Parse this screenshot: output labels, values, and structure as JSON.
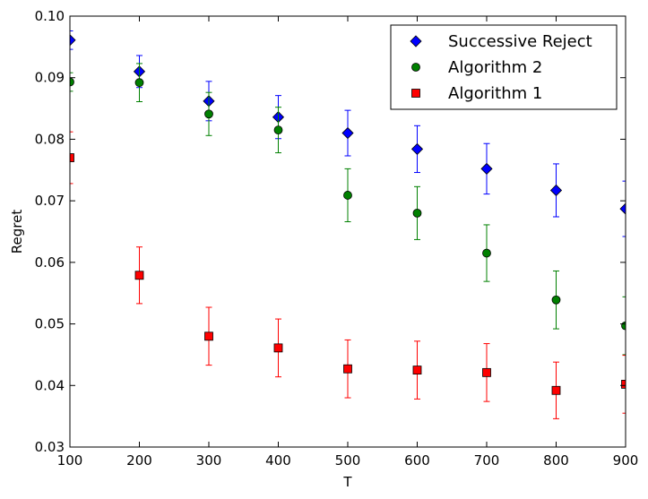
{
  "chart_data": {
    "type": "scatter",
    "title": "",
    "xlabel": "T",
    "ylabel": "Regret",
    "xlim": [
      100,
      900
    ],
    "ylim": [
      0.03,
      0.1
    ],
    "xticks": [
      100,
      200,
      300,
      400,
      500,
      600,
      700,
      800,
      900
    ],
    "xtick_labels": [
      "100",
      "200",
      "300",
      "400",
      "500",
      "600",
      "700",
      "800",
      "900"
    ],
    "yticks": [
      0.03,
      0.04,
      0.05,
      0.06,
      0.07,
      0.08,
      0.09,
      0.1
    ],
    "ytick_labels": [
      "0.03",
      "0.04",
      "0.05",
      "0.06",
      "0.07",
      "0.08",
      "0.09",
      "0.10"
    ],
    "grid": false,
    "legend_position": "top-right",
    "x": [
      100,
      200,
      300,
      400,
      500,
      600,
      700,
      800,
      900
    ],
    "series": [
      {
        "name": "Successive Reject",
        "marker": "diamond",
        "color": "#0000ff",
        "values": [
          0.0961,
          0.091,
          0.0862,
          0.0836,
          0.081,
          0.0784,
          0.0752,
          0.0717,
          0.0687
        ],
        "errors": [
          0.0015,
          0.0026,
          0.0032,
          0.0035,
          0.0037,
          0.0038,
          0.0041,
          0.0043,
          0.0045
        ]
      },
      {
        "name": "Algorithm 2",
        "marker": "circle",
        "color": "#008000",
        "values": [
          0.0893,
          0.0892,
          0.0841,
          0.0815,
          0.0709,
          0.068,
          0.0615,
          0.0539,
          0.0497
        ],
        "errors": [
          0.0015,
          0.0031,
          0.0035,
          0.0037,
          0.0043,
          0.0043,
          0.0046,
          0.0047,
          0.0047
        ]
      },
      {
        "name": "Algorithm 1",
        "marker": "square",
        "color": "#ff0000",
        "values": [
          0.077,
          0.0579,
          0.048,
          0.0461,
          0.0427,
          0.0425,
          0.0421,
          0.0392,
          0.0402
        ],
        "errors": [
          0.0042,
          0.0046,
          0.0047,
          0.0047,
          0.0047,
          0.0047,
          0.0047,
          0.0046,
          0.0047
        ]
      }
    ]
  }
}
